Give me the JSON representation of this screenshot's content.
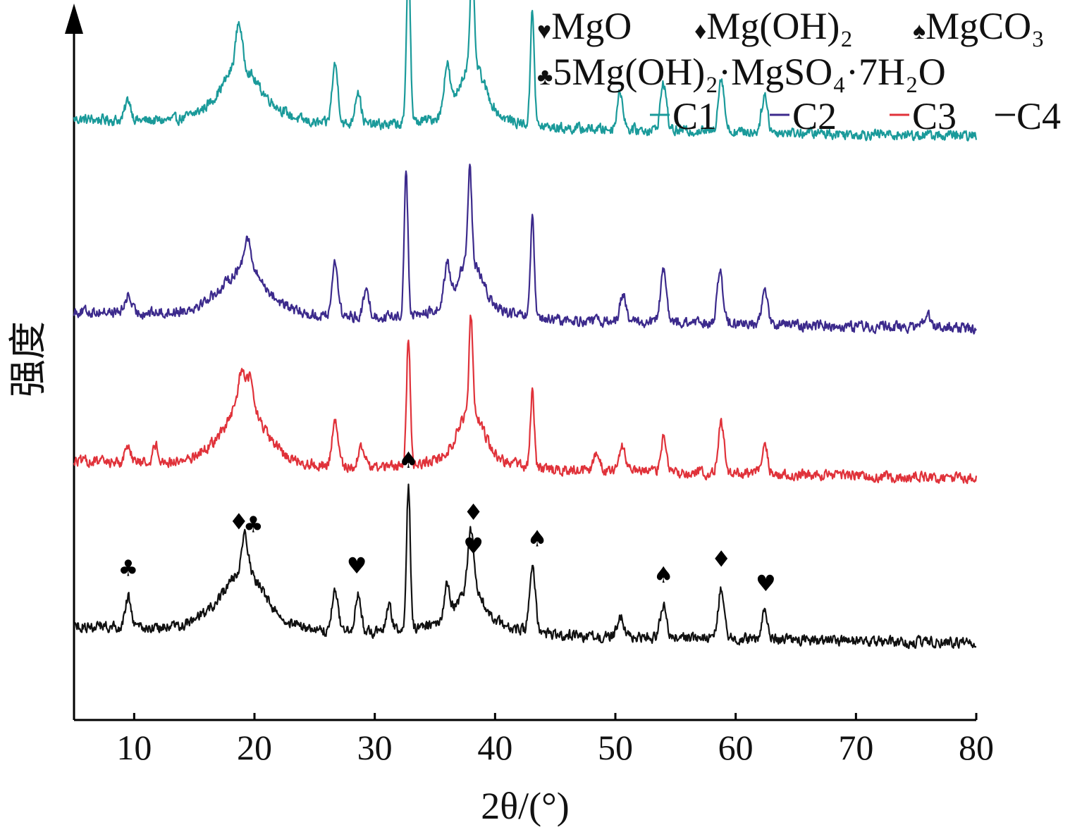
{
  "chart_data": {
    "type": "line",
    "title": "",
    "xlabel": "2θ/(°)",
    "ylabel": "强度",
    "xlim": [
      5,
      80
    ],
    "xticks": [
      "10",
      "20",
      "30",
      "40",
      "50",
      "60",
      "70",
      "80"
    ],
    "grid": false,
    "legend": {
      "phases": [
        {
          "symbol": "♥",
          "label": "MgO"
        },
        {
          "symbol": "♦",
          "label": "Mg(OH)₂"
        },
        {
          "symbol": "♠",
          "label": "MgCO₃"
        },
        {
          "symbol": "♣",
          "label": "5Mg(OH)₂·MgSO₄·7H₂O"
        }
      ],
      "position": "top-right"
    },
    "series": [
      {
        "name": "C1",
        "color": "#1a9a9a",
        "baseline_start": 0.42,
        "baseline_end": 0.32,
        "broad_hump": 0.22,
        "peaks": [
          [
            9.5,
            0.12
          ],
          [
            18.7,
            0.25
          ],
          [
            26.7,
            0.35
          ],
          [
            28.6,
            0.2
          ],
          [
            32.8,
            1.0
          ],
          [
            36.0,
            0.28
          ],
          [
            38.1,
            0.6
          ],
          [
            43.1,
            0.7
          ],
          [
            50.4,
            0.22
          ],
          [
            54.0,
            0.28
          ],
          [
            58.8,
            0.32
          ],
          [
            62.4,
            0.22
          ]
        ]
      },
      {
        "name": "C2",
        "color": "#3c2a8c",
        "baseline_start": 0.45,
        "baseline_end": 0.35,
        "broad_hump": 0.2,
        "peaks": [
          [
            9.5,
            0.1
          ],
          [
            19.4,
            0.18
          ],
          [
            26.7,
            0.32
          ],
          [
            29.3,
            0.15
          ],
          [
            32.6,
            0.85
          ],
          [
            36.0,
            0.22
          ],
          [
            37.9,
            0.55
          ],
          [
            43.1,
            0.58
          ],
          [
            50.6,
            0.16
          ],
          [
            54.0,
            0.3
          ],
          [
            58.7,
            0.3
          ],
          [
            62.4,
            0.2
          ],
          [
            75.9,
            0.08
          ]
        ]
      },
      {
        "name": "C3",
        "color": "#e0323a",
        "baseline_start": 0.48,
        "baseline_end": 0.38,
        "broad_hump": 0.22,
        "peaks": [
          [
            9.5,
            0.1
          ],
          [
            11.8,
            0.1
          ],
          [
            18.9,
            0.18
          ],
          [
            19.6,
            0.16
          ],
          [
            26.7,
            0.26
          ],
          [
            28.9,
            0.12
          ],
          [
            32.8,
            0.75
          ],
          [
            38.0,
            0.55
          ],
          [
            43.1,
            0.45
          ],
          [
            48.5,
            0.12
          ],
          [
            50.6,
            0.15
          ],
          [
            54.0,
            0.2
          ],
          [
            58.8,
            0.3
          ],
          [
            62.4,
            0.17
          ]
        ]
      },
      {
        "name": "C4",
        "color": "#111111",
        "baseline_start": 0.42,
        "baseline_end": 0.32,
        "broad_hump": 0.25,
        "peaks": [
          [
            9.5,
            0.18
          ],
          [
            19.2,
            0.22
          ],
          [
            26.7,
            0.24
          ],
          [
            28.6,
            0.22
          ],
          [
            31.2,
            0.14
          ],
          [
            32.8,
            0.85
          ],
          [
            36.0,
            0.2
          ],
          [
            38.0,
            0.35
          ],
          [
            43.1,
            0.4
          ],
          [
            50.4,
            0.12
          ],
          [
            54.0,
            0.2
          ],
          [
            58.8,
            0.3
          ],
          [
            62.4,
            0.16
          ]
        ]
      }
    ],
    "phase_markers": [
      {
        "symbol": "♣",
        "x": 9.5
      },
      {
        "symbol": "♦",
        "x": 18.7
      },
      {
        "symbol": "♣",
        "x": 19.9
      },
      {
        "symbol": "♥",
        "x": 28.5
      },
      {
        "symbol": "♠",
        "x": 32.8
      },
      {
        "symbol": "♥",
        "x": 38.2
      },
      {
        "symbol": "♦",
        "x": 38.2
      },
      {
        "symbol": "♠",
        "x": 43.5
      },
      {
        "symbol": "♠",
        "x": 54.0
      },
      {
        "symbol": "♦",
        "x": 58.8
      },
      {
        "symbol": "♥",
        "x": 62.5
      }
    ]
  }
}
